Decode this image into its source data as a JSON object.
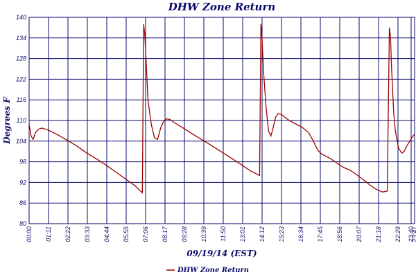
{
  "chart_data": {
    "type": "line",
    "title": "DHW Zone Return",
    "xlabel": "09/19/14 (EST)",
    "ylabel": "Degrees F",
    "ylim": [
      80,
      140
    ],
    "yticks": [
      80,
      86,
      92,
      98,
      104,
      110,
      116,
      122,
      128,
      134,
      140
    ],
    "xlim_hours": [
      0,
      24
    ],
    "xtick_labels": [
      "00:00",
      "01:11",
      "02:22",
      "03:33",
      "04:44",
      "05:55",
      "07:06",
      "08:17",
      "09:28",
      "10:39",
      "11:50",
      "13:01",
      "14:12",
      "15:23",
      "16:34",
      "17:45",
      "18:56",
      "20:07",
      "21:18",
      "22:29",
      "23:40",
      "23:41"
    ],
    "grid": true,
    "legend_position": "bottom-center",
    "series": [
      {
        "name": "DHW Zone Return",
        "color": "#9b0000",
        "x_hours": [
          0.0,
          0.12,
          0.25,
          0.4,
          0.6,
          0.8,
          1.2,
          1.8,
          2.4,
          3.0,
          3.6,
          4.2,
          4.8,
          5.4,
          6.0,
          6.6,
          7.05,
          7.13,
          7.2,
          7.3,
          7.4,
          7.6,
          7.8,
          8.0,
          8.2,
          8.4,
          8.6,
          8.8,
          9.0,
          9.6,
          10.2,
          10.8,
          11.4,
          12.0,
          12.6,
          13.2,
          13.8,
          14.35,
          14.43,
          14.5,
          14.6,
          14.75,
          14.9,
          15.05,
          15.2,
          15.35,
          15.5,
          15.7,
          15.9,
          16.2,
          16.6,
          17.0,
          17.4,
          17.7,
          17.85,
          18.0,
          18.2,
          18.4,
          18.8,
          19.2,
          19.6,
          20.0,
          20.4,
          20.8,
          21.2,
          21.6,
          22.0,
          22.3,
          22.43,
          22.5,
          22.56,
          22.62,
          22.7,
          22.8,
          23.0,
          23.2,
          23.35,
          23.5,
          23.7,
          23.9,
          24.0
        ],
        "y": [
          109,
          105.5,
          104.5,
          106.5,
          107.5,
          107.8,
          107.2,
          105.8,
          104.2,
          102.5,
          100.5,
          98.8,
          97,
          95,
          93,
          91,
          89,
          138,
          135,
          126,
          116,
          109,
          105,
          104.5,
          108,
          110,
          110.5,
          110.2,
          109.5,
          107.8,
          106,
          104.3,
          102.6,
          100.8,
          99,
          97.2,
          95.3,
          94,
          138,
          134,
          124,
          114,
          107,
          105.5,
          108,
          111,
          112,
          111.8,
          111,
          110,
          109,
          108,
          106.5,
          104,
          102.5,
          101.2,
          100.3,
          99.8,
          98.8,
          97.5,
          96.3,
          95.5,
          94.2,
          92.8,
          91.3,
          90,
          89.2,
          89.5,
          137,
          134,
          126,
          120,
          112,
          107,
          102,
          100.5,
          101,
          102.5,
          104,
          105.5,
          106
        ]
      }
    ]
  }
}
